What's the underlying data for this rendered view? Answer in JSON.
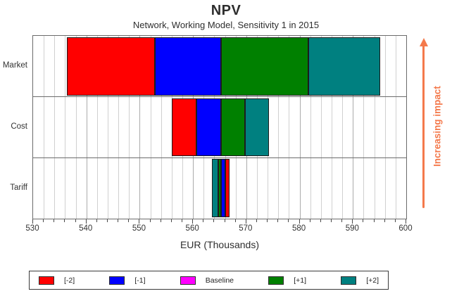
{
  "title": "NPV",
  "subtitle": "Network, Working Model, Sensitivity 1 in 2015",
  "xaxis_title": "EUR  (Thousands)",
  "annotation": {
    "text": "Increasing impact",
    "color": "#F4794B"
  },
  "legend": {
    "items": [
      {
        "label": "[-2]",
        "color": "#FF0000"
      },
      {
        "label": "[-1]",
        "color": "#0000FF"
      },
      {
        "label": "Baseline",
        "color": "#FF00FF"
      },
      {
        "label": "[+1]",
        "color": "#008000"
      },
      {
        "label": "[+2]",
        "color": "#008080"
      }
    ]
  },
  "chart_data": {
    "type": "bar",
    "subtype": "tornado-sensitivity",
    "orientation": "horizontal",
    "title": "NPV",
    "subtitle": "Network, Working Model, Sensitivity 1 in 2015",
    "xlabel": "EUR  (Thousands)",
    "xlim": [
      530,
      600
    ],
    "x_major_ticks": [
      530,
      540,
      550,
      560,
      570,
      580,
      590,
      600
    ],
    "x_minor_tick_step": 2,
    "grid": "vertical-minor-on",
    "legend_position": "bottom",
    "categories": [
      "Market",
      "Cost",
      "Tariff"
    ],
    "baseline_value": 565.2,
    "series_colors": {
      "[-2]": "#FF0000",
      "[-1]": "#0000FF",
      "Baseline": "#FF00FF",
      "[+1]": "#008000",
      "[+2]": "#008080"
    },
    "endpoints": {
      "Market": {
        "[-2]": 536.4,
        "[-1]": 552.8,
        "[+1]": 581.7,
        "[+2]": 595.1
      },
      "Cost": {
        "[-2]": 556.0,
        "[-1]": 560.6,
        "[+1]": 569.7,
        "[+2]": 574.2
      },
      "Tariff": {
        "[-2]": 566.9,
        "[-1]": 566.0,
        "[+1]": 564.7,
        "[+2]": 563.6
      }
    },
    "rows": [
      {
        "category": "Market",
        "segments": [
          {
            "label": "[-2]",
            "from": 536.4,
            "to": 552.8
          },
          {
            "label": "[-1]",
            "from": 552.8,
            "to": 565.2
          },
          {
            "label": "[+1]",
            "from": 565.2,
            "to": 581.7
          },
          {
            "label": "[+2]",
            "from": 581.7,
            "to": 595.1
          }
        ]
      },
      {
        "category": "Cost",
        "segments": [
          {
            "label": "[-2]",
            "from": 556.0,
            "to": 560.6
          },
          {
            "label": "[-1]",
            "from": 560.6,
            "to": 565.2
          },
          {
            "label": "[+1]",
            "from": 565.2,
            "to": 569.7
          },
          {
            "label": "[+2]",
            "from": 569.7,
            "to": 574.2
          }
        ]
      },
      {
        "category": "Tariff",
        "segments": [
          {
            "label": "[+2]",
            "from": 563.6,
            "to": 564.7
          },
          {
            "label": "[+1]",
            "from": 564.7,
            "to": 565.2
          },
          {
            "label": "[-1]",
            "from": 565.2,
            "to": 566.0
          },
          {
            "label": "[-2]",
            "from": 566.0,
            "to": 566.9
          }
        ]
      }
    ]
  }
}
